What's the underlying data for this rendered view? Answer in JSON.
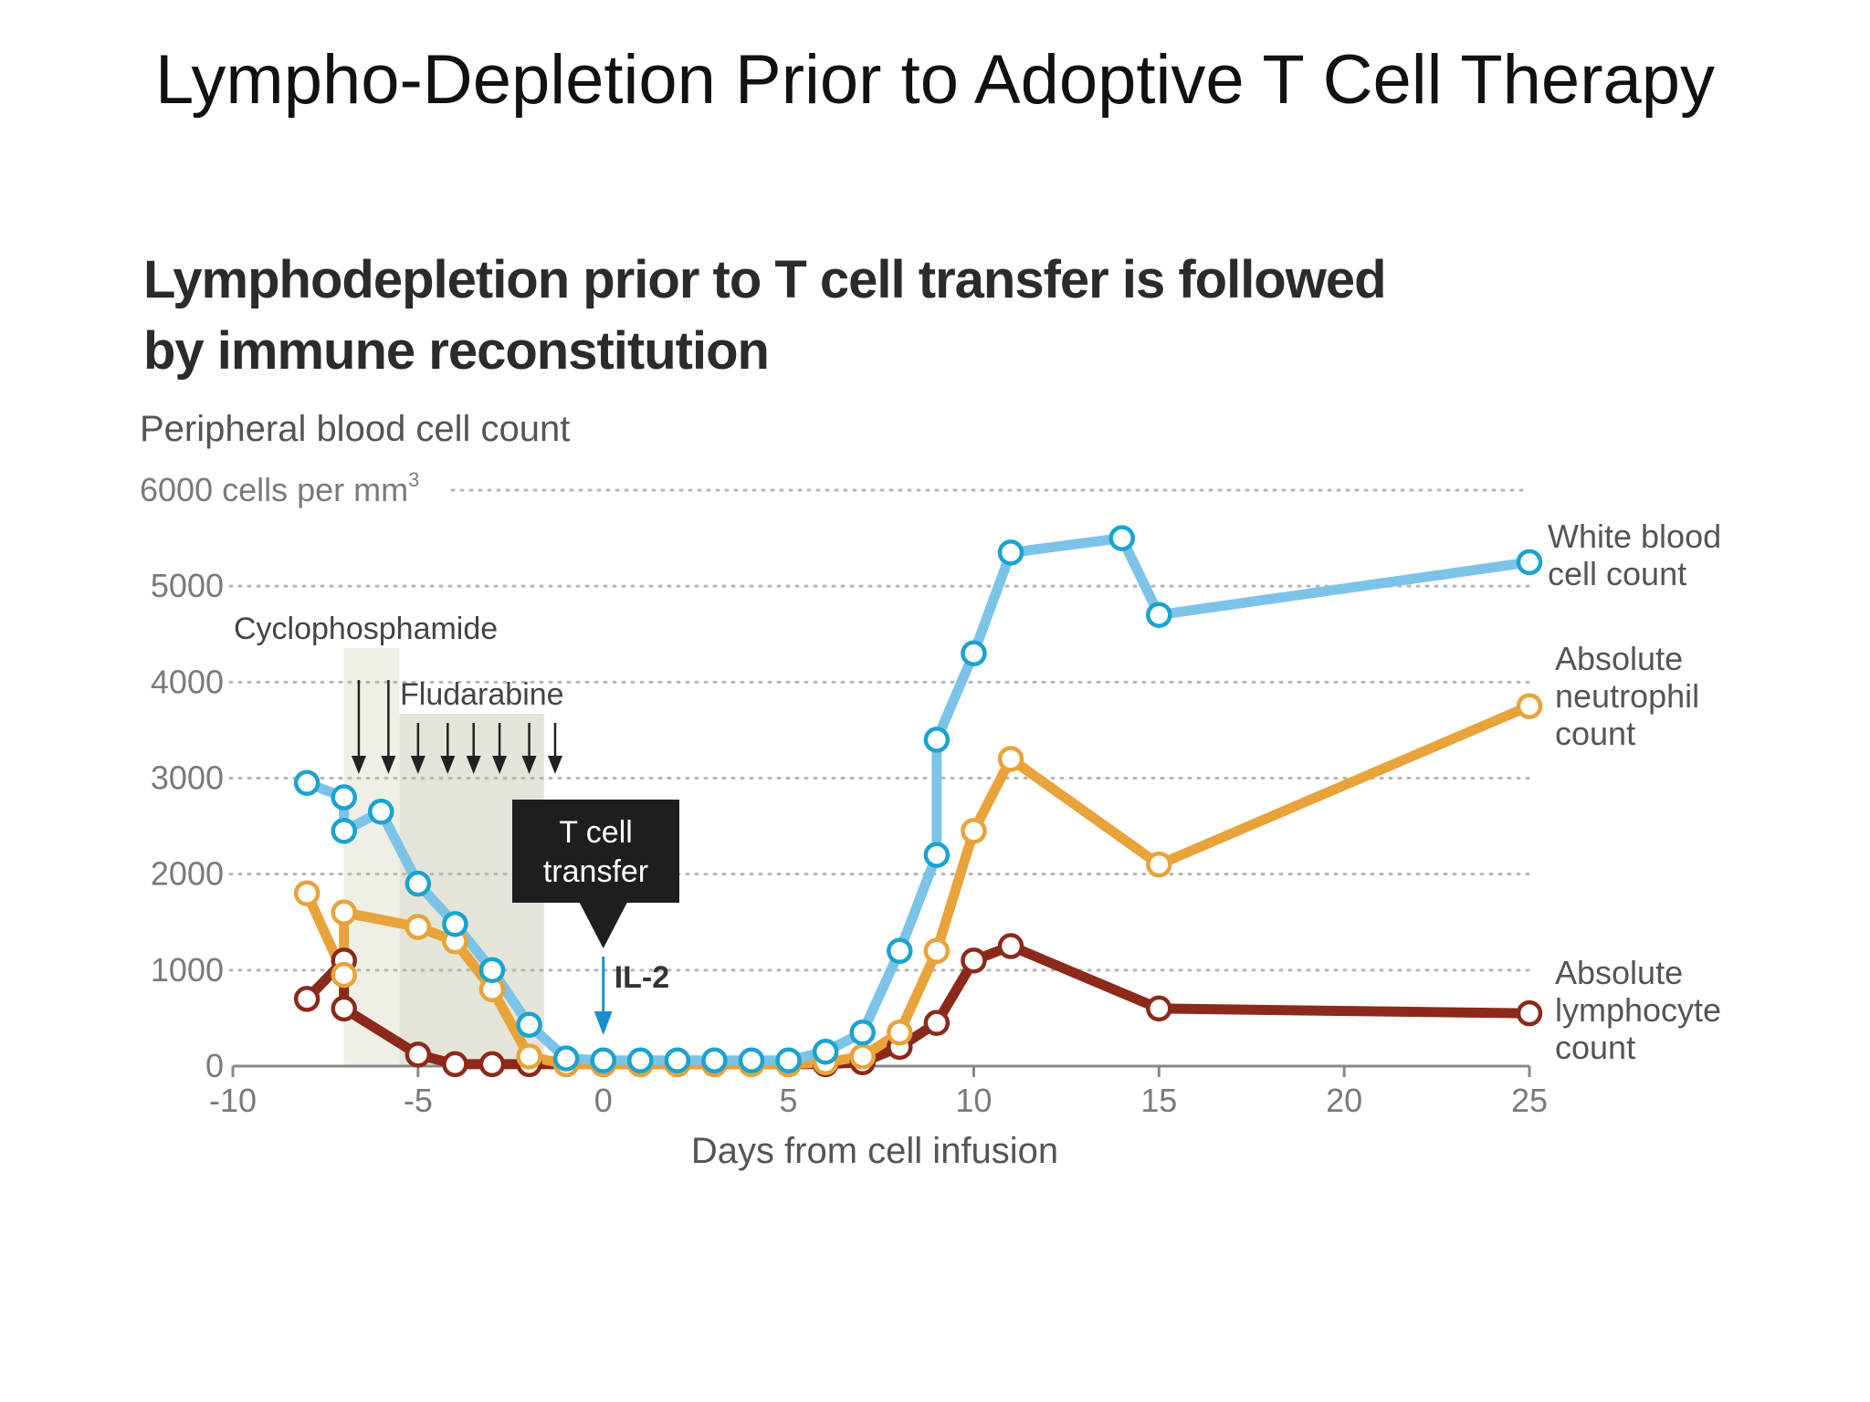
{
  "slide": {
    "title": "Lympho-Depletion Prior to Adoptive T Cell Therapy"
  },
  "chart_data": {
    "type": "line",
    "title": "Lymphodepletion prior to T cell transfer is followed by immune reconstitution",
    "title_lines": [
      "Lymphodepletion prior to T cell transfer is followed",
      "by immune reconstitution"
    ],
    "ylabel": "Peripheral blood cell count",
    "y_top_label": "6000 cells per mm",
    "y_top_label_sup": "3",
    "xlabel": "Days from cell infusion",
    "xlim": [
      -10,
      25
    ],
    "ylim": [
      0,
      6000
    ],
    "x_ticks": [
      -10,
      -5,
      0,
      5,
      10,
      15,
      20,
      25
    ],
    "y_ticks": [
      0,
      1000,
      2000,
      3000,
      4000,
      5000
    ],
    "grid": "dotted horizontal",
    "series": [
      {
        "name": "White blood cell count",
        "label_lines": [
          "White blood",
          "cell count"
        ],
        "color": "#7cc3e8",
        "marker_color": "#1aa3cf",
        "x": [
          -8,
          -7,
          -7,
          -6,
          -5,
          -4,
          -3,
          -2,
          -1,
          0,
          1,
          2,
          3,
          4,
          5,
          6,
          7,
          8,
          9,
          9,
          10,
          11,
          14,
          15,
          25
        ],
        "y": [
          2950,
          2800,
          2450,
          2650,
          1900,
          1480,
          1000,
          430,
          80,
          60,
          60,
          60,
          60,
          60,
          60,
          150,
          350,
          1200,
          2200,
          3400,
          4300,
          5350,
          5500,
          4700,
          5250
        ]
      },
      {
        "name": "Absolute neutrophil count",
        "label_lines": [
          "Absolute",
          "neutrophil",
          "count"
        ],
        "color": "#e8a33a",
        "marker_color": "#e8a33a",
        "x": [
          -8,
          -7,
          -7,
          -5,
          -4,
          -3,
          -2,
          -1,
          0,
          1,
          2,
          3,
          4,
          5,
          6,
          7,
          8,
          9,
          10,
          11,
          15,
          25
        ],
        "y": [
          1800,
          950,
          1600,
          1450,
          1300,
          800,
          100,
          20,
          20,
          20,
          20,
          20,
          20,
          20,
          40,
          100,
          350,
          1200,
          2450,
          3200,
          2100,
          3750
        ]
      },
      {
        "name": "Absolute lymphocyte count",
        "label_lines": [
          "Absolute",
          "lymphocyte",
          "count"
        ],
        "color": "#8b2a1a",
        "marker_color": "#8b2a1a",
        "x": [
          -8,
          -7,
          -7,
          -5,
          -4,
          -3,
          -2,
          -1,
          0,
          1,
          2,
          3,
          4,
          5,
          6,
          7,
          8,
          9,
          10,
          11,
          15,
          25
        ],
        "y": [
          700,
          1100,
          600,
          120,
          20,
          20,
          20,
          20,
          20,
          20,
          20,
          20,
          20,
          20,
          20,
          40,
          200,
          450,
          1100,
          1250,
          600,
          550
        ]
      }
    ],
    "annotations": {
      "cyclophosphamide": {
        "label": "Cyclophosphamide",
        "x_start": -7,
        "x_end": -5.5,
        "dose_days": [
          -6.6,
          -5.8
        ]
      },
      "fludarabine": {
        "label": "Fludarabine",
        "x_start": -5.5,
        "x_end": -1.6,
        "dose_days": [
          -5,
          -4.2,
          -3.5,
          -2.8,
          -2,
          -1.3
        ]
      },
      "tcell_box": [
        "T cell",
        "transfer"
      ],
      "il2": {
        "label": "IL-2",
        "x": 0
      }
    },
    "colors": {
      "shade_cyclo": "#f0efe6",
      "shade_fluda": "#e5e4d8",
      "callout_bg": "#1e1e1e",
      "il2_arrow": "#1a8fcf",
      "axis_text": "#7a7a7a",
      "grid": "#b5b5b5"
    }
  }
}
